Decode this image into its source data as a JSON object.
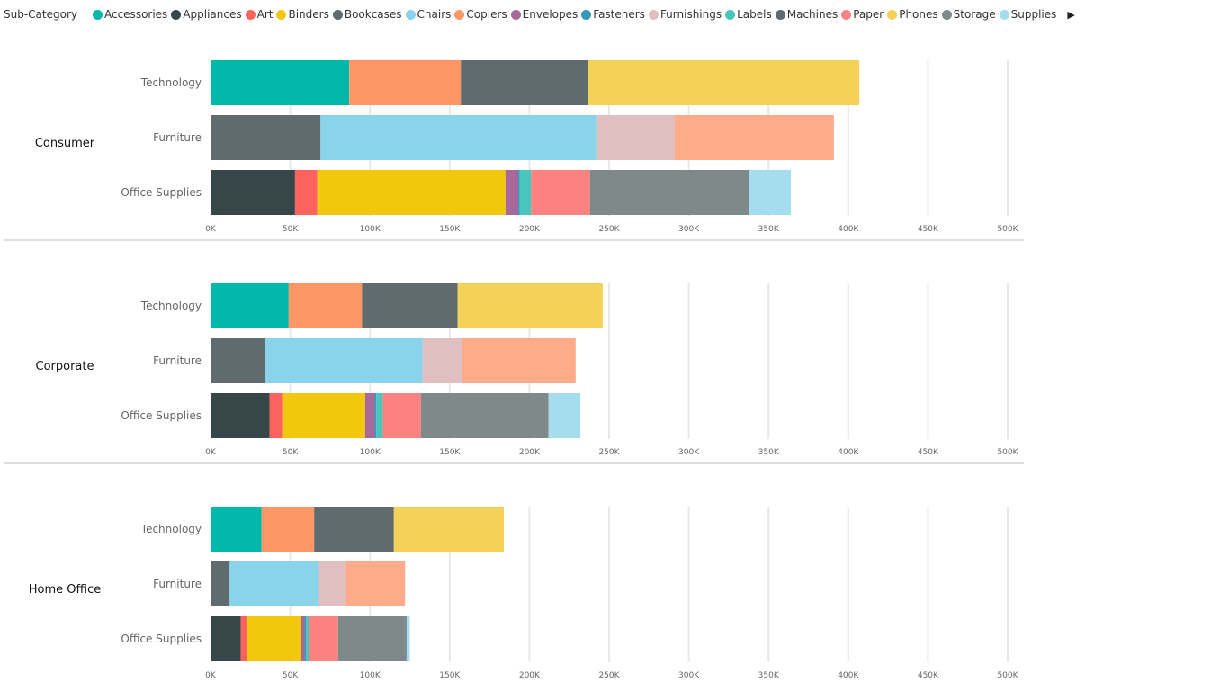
{
  "legend": {
    "title": "Sub-Category",
    "more_icon": "triangle-right-icon"
  },
  "chart_data": {
    "type": "bar",
    "orientation": "horizontal",
    "stacked": true,
    "small_multiples_by": "Segment",
    "legend_position": "top-left",
    "grid": true,
    "xlim": [
      0,
      500000
    ],
    "x_ticks": [
      "0K",
      "50K",
      "100K",
      "150K",
      "200K",
      "250K",
      "300K",
      "350K",
      "400K",
      "450K",
      "500K"
    ],
    "categories": [
      "Technology",
      "Furniture",
      "Office Supplies"
    ],
    "series_colors": {
      "Accessories": "#01B8AA",
      "Appliances": "#374649",
      "Art": "#FD625E",
      "Binders": "#F2C80F",
      "Bookcases": "#5F6B6D",
      "Chairs": "#8AD4EB",
      "Copiers": "#FE9666",
      "Envelopes": "#A66999",
      "Fasteners": "#3599B8",
      "Furnishings": "#DFBFBF",
      "Labels": "#4AC5BB",
      "Machines": "#5F6B6D",
      "Paper": "#FB8281",
      "Phones": "#F4D25A",
      "Storage": "#7F898A",
      "Supplies": "#A4DDEE"
    },
    "legend_items": [
      "Accessories",
      "Appliances",
      "Art",
      "Binders",
      "Bookcases",
      "Chairs",
      "Copiers",
      "Envelopes",
      "Fasteners",
      "Furnishings",
      "Labels",
      "Machines",
      "Paper",
      "Phones",
      "Storage",
      "Supplies"
    ],
    "unlabeled_series_color": "#FDAB89",
    "panels": [
      {
        "segment": "Consumer",
        "rows": [
          {
            "category": "Technology",
            "segments": [
              [
                "Accessories",
                87000
              ],
              [
                "Copiers",
                70000
              ],
              [
                "Machines",
                80000
              ],
              [
                "Phones",
                170000
              ]
            ]
          },
          {
            "category": "Furniture",
            "segments": [
              [
                "Bookcases",
                69000
              ],
              [
                "Chairs",
                173000
              ],
              [
                "Furnishings",
                49000
              ],
              [
                "",
                100000
              ]
            ]
          },
          {
            "category": "Office Supplies",
            "segments": [
              [
                "Appliances",
                53000
              ],
              [
                "Art",
                14000
              ],
              [
                "Binders",
                118000
              ],
              [
                "Envelopes",
                8000
              ],
              [
                "Fasteners",
                1000
              ],
              [
                "Labels",
                7000
              ],
              [
                "Paper",
                37000
              ],
              [
                "Storage",
                100000
              ],
              [
                "Supplies",
                26000
              ]
            ]
          }
        ]
      },
      {
        "segment": "Corporate",
        "rows": [
          {
            "category": "Technology",
            "segments": [
              [
                "Accessories",
                49000
              ],
              [
                "Copiers",
                46000
              ],
              [
                "Machines",
                60000
              ],
              [
                "Phones",
                91000
              ]
            ]
          },
          {
            "category": "Furniture",
            "segments": [
              [
                "Bookcases",
                34000
              ],
              [
                "Chairs",
                99000
              ],
              [
                "Furnishings",
                25000
              ],
              [
                "",
                71000
              ]
            ]
          },
          {
            "category": "Office Supplies",
            "segments": [
              [
                "Appliances",
                37000
              ],
              [
                "Art",
                8000
              ],
              [
                "Binders",
                52000
              ],
              [
                "Envelopes",
                6000
              ],
              [
                "Fasteners",
                1000
              ],
              [
                "Labels",
                4000
              ],
              [
                "Paper",
                24000
              ],
              [
                "Storage",
                80000
              ],
              [
                "Supplies",
                20000
              ]
            ]
          }
        ]
      },
      {
        "segment": "Home Office",
        "rows": [
          {
            "category": "Technology",
            "segments": [
              [
                "Accessories",
                32000
              ],
              [
                "Copiers",
                33000
              ],
              [
                "Machines",
                50000
              ],
              [
                "Phones",
                69000
              ]
            ]
          },
          {
            "category": "Furniture",
            "segments": [
              [
                "Bookcases",
                12000
              ],
              [
                "Chairs",
                56000
              ],
              [
                "Furnishings",
                17000
              ],
              [
                "",
                37000
              ]
            ]
          },
          {
            "category": "Office Supplies",
            "segments": [
              [
                "Appliances",
                19000
              ],
              [
                "Art",
                4000
              ],
              [
                "Binders",
                34000
              ],
              [
                "Envelopes",
                2000
              ],
              [
                "Fasteners",
                1000
              ],
              [
                "Labels",
                2000
              ],
              [
                "Paper",
                18000
              ],
              [
                "Storage",
                43000
              ],
              [
                "Supplies",
                2000
              ]
            ]
          }
        ]
      }
    ]
  }
}
